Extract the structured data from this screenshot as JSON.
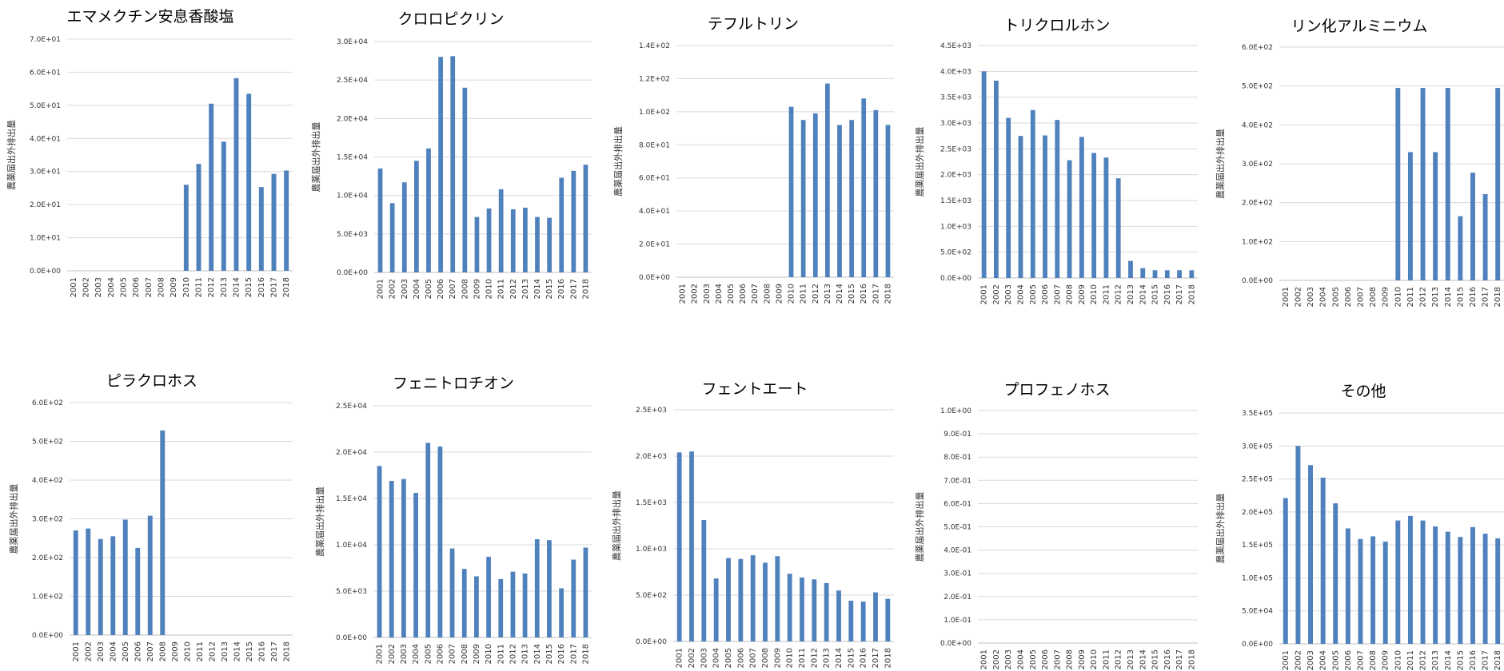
{
  "colors": {
    "bar": "#4f81bd",
    "grid": "#d9d9d9"
  },
  "chart_data": [
    {
      "type": "bar",
      "title": "エマメクチン安息香酸塩",
      "ylabel": "農薬届出外排出量",
      "categories": [
        "2001",
        "2002",
        "2003",
        "2004",
        "2005",
        "2006",
        "2007",
        "2008",
        "2009",
        "2010",
        "2011",
        "2012",
        "2013",
        "2014",
        "2015",
        "2016",
        "2017",
        "2018"
      ],
      "values": [
        0,
        0,
        0,
        0,
        0,
        0,
        0,
        0,
        0,
        26,
        32.3,
        50.5,
        39,
        58.2,
        53.5,
        25.3,
        29.3,
        30.3
      ],
      "ylim": [
        0,
        70
      ],
      "yticks": [
        "0.0E+00",
        "1.0E+01",
        "2.0E+01",
        "3.0E+01",
        "4.0E+01",
        "5.0E+01",
        "6.0E+01",
        "7.0E+01"
      ],
      "grid": true
    },
    {
      "type": "bar",
      "title": "クロロピクリン",
      "ylabel": "農薬届出外排出量",
      "categories": [
        "2001",
        "2002",
        "2003",
        "2004",
        "2005",
        "2006",
        "2007",
        "2008",
        "2009",
        "2010",
        "2011",
        "2012",
        "2013",
        "2014",
        "2015",
        "2016",
        "2017",
        "2018"
      ],
      "values": [
        13500,
        9000,
        11700,
        14500,
        16100,
        28000,
        28100,
        24000,
        7200,
        8300,
        10800,
        8200,
        8400,
        7200,
        7100,
        12300,
        13200,
        14000
      ],
      "ylim": [
        0,
        30000
      ],
      "yticks": [
        "0.0E+00",
        "5.0E+03",
        "1.0E+04",
        "1.5E+04",
        "2.0E+04",
        "2.5E+04",
        "3.0E+04"
      ],
      "grid": true
    },
    {
      "type": "bar",
      "title": "テフルトリン",
      "ylabel": "農薬届出外排出量",
      "categories": [
        "2001",
        "2002",
        "2003",
        "2004",
        "2005",
        "2006",
        "2007",
        "2008",
        "2009",
        "2010",
        "2011",
        "2012",
        "2013",
        "2014",
        "2015",
        "2016",
        "2017",
        "2018"
      ],
      "values": [
        0,
        0,
        0,
        0,
        0,
        0,
        0,
        0,
        0,
        103,
        95,
        99,
        117,
        92,
        95,
        108,
        101,
        92
      ],
      "ylim": [
        0,
        140
      ],
      "yticks": [
        "0.0E+00",
        "2.0E+01",
        "4.0E+01",
        "6.0E+01",
        "8.0E+01",
        "1.0E+02",
        "1.2E+02",
        "1.4E+02"
      ],
      "grid": true
    },
    {
      "type": "bar",
      "title": "トリクロルホン",
      "ylabel": "農薬届出外排出量",
      "categories": [
        "2001",
        "2002",
        "2003",
        "2004",
        "2005",
        "2006",
        "2007",
        "2008",
        "2009",
        "2010",
        "2011",
        "2012",
        "2013",
        "2014",
        "2015",
        "2016",
        "2017",
        "2018"
      ],
      "values": [
        4000,
        3820,
        3100,
        2750,
        3250,
        2760,
        3060,
        2280,
        2730,
        2420,
        2330,
        1930,
        330,
        190,
        150,
        150,
        150,
        150
      ],
      "ylim": [
        0,
        4500
      ],
      "yticks": [
        "0.0E+00",
        "5.0E+02",
        "1.0E+03",
        "1.5E+03",
        "2.0E+03",
        "2.5E+03",
        "3.0E+03",
        "3.5E+03",
        "4.0E+03",
        "4.5E+03"
      ],
      "grid": true
    },
    {
      "type": "bar",
      "title": "リン化アルミニウム",
      "ylabel": "農薬届出外排出量",
      "categories": [
        "2001",
        "2002",
        "2003",
        "2004",
        "2005",
        "2006",
        "2007",
        "2008",
        "2009",
        "2010",
        "2011",
        "2012",
        "2013",
        "2014",
        "2015",
        "2016",
        "2017",
        "2018"
      ],
      "values": [
        0,
        0,
        0,
        0,
        0,
        0,
        0,
        0,
        0,
        495,
        330,
        495,
        330,
        495,
        165,
        277,
        222,
        495
      ],
      "ylim": [
        0,
        600
      ],
      "yticks": [
        "0.0E+00",
        "1.0E+02",
        "2.0E+02",
        "3.0E+02",
        "4.0E+02",
        "5.0E+02",
        "6.0E+02"
      ],
      "grid": true
    },
    {
      "type": "bar",
      "title": "ピラクロホス",
      "ylabel": "農薬届出外排出量",
      "categories": [
        "2001",
        "2002",
        "2003",
        "2004",
        "2005",
        "2006",
        "2007",
        "2008",
        "2009",
        "2010",
        "2011",
        "2012",
        "2013",
        "2014",
        "2015",
        "2016",
        "2017",
        "2018"
      ],
      "values": [
        270,
        275,
        248,
        255,
        298,
        225,
        308,
        528,
        0,
        0,
        0,
        0,
        0,
        0,
        0,
        0,
        0,
        0
      ],
      "ylim": [
        0,
        600
      ],
      "yticks": [
        "0.0E+00",
        "1.0E+02",
        "2.0E+02",
        "3.0E+02",
        "4.0E+02",
        "5.0E+02",
        "6.0E+02"
      ],
      "grid": true
    },
    {
      "type": "bar",
      "title": "フェニトロチオン",
      "ylabel": "農薬届出外排出量",
      "categories": [
        "2001",
        "2002",
        "2003",
        "2004",
        "2005",
        "2006",
        "2007",
        "2008",
        "2009",
        "2010",
        "2011",
        "2012",
        "2013",
        "2014",
        "2015",
        "2016",
        "2017",
        "2018"
      ],
      "values": [
        18500,
        16900,
        17100,
        15600,
        21000,
        20600,
        9600,
        7400,
        6600,
        8700,
        6300,
        7100,
        6900,
        10600,
        10500,
        5300,
        8400,
        9700
      ],
      "ylim": [
        0,
        25000
      ],
      "yticks": [
        "0.0E+00",
        "5.0E+03",
        "1.0E+04",
        "1.5E+04",
        "2.0E+04",
        "2.5E+04"
      ],
      "grid": true
    },
    {
      "type": "bar",
      "title": "フェントエート",
      "ylabel": "農薬届出外排出量",
      "categories": [
        "2001",
        "2002",
        "2003",
        "2004",
        "2005",
        "2006",
        "2007",
        "2008",
        "2009",
        "2010",
        "2011",
        "2012",
        "2013",
        "2014",
        "2015",
        "2016",
        "2017",
        "2018"
      ],
      "values": [
        2040,
        2050,
        1310,
        680,
        900,
        890,
        930,
        850,
        920,
        730,
        690,
        670,
        630,
        550,
        440,
        430,
        530,
        460
      ],
      "ylim": [
        0,
        2500
      ],
      "yticks": [
        "0.0E+00",
        "5.0E+02",
        "1.0E+03",
        "1.5E+03",
        "2.0E+03",
        "2.5E+03"
      ],
      "grid": true
    },
    {
      "type": "bar",
      "title": "プロフェノホス",
      "ylabel": "農薬届出外排出量",
      "categories": [
        "2001",
        "2002",
        "2003",
        "2004",
        "2005",
        "2006",
        "2007",
        "2008",
        "2009",
        "2010",
        "2011",
        "2012",
        "2013",
        "2014",
        "2015",
        "2016",
        "2017",
        "2018"
      ],
      "values": [
        0,
        0,
        0,
        0,
        0,
        0,
        0,
        0,
        0,
        0,
        0,
        0,
        0,
        0,
        0,
        0,
        0,
        0
      ],
      "ylim": [
        0,
        1
      ],
      "yticks": [
        "0.0E+00",
        "1.0E-01",
        "2.0E-01",
        "3.0E-01",
        "4.0E-01",
        "5.0E-01",
        "6.0E-01",
        "7.0E-01",
        "8.0E-01",
        "9.0E-01",
        "1.0E+00"
      ],
      "grid": true
    },
    {
      "type": "bar",
      "title": "その他",
      "ylabel": "農薬届出外排出量",
      "categories": [
        "2001",
        "2002",
        "2003",
        "2004",
        "2005",
        "2006",
        "2007",
        "2008",
        "2009",
        "2010",
        "2011",
        "2012",
        "2013",
        "2014",
        "2015",
        "2016",
        "2017",
        "2018"
      ],
      "values": [
        221000,
        300000,
        271000,
        252000,
        213000,
        175000,
        159000,
        163000,
        155000,
        187000,
        194000,
        187000,
        178000,
        170000,
        162000,
        177000,
        167000,
        160000
      ],
      "ylim": [
        0,
        350000
      ],
      "yticks": [
        "0.0E+00",
        "5.0E+04",
        "1.0E+05",
        "1.5E+05",
        "2.0E+05",
        "2.5E+05",
        "3.0E+05",
        "3.5E+05"
      ],
      "grid": true
    }
  ]
}
